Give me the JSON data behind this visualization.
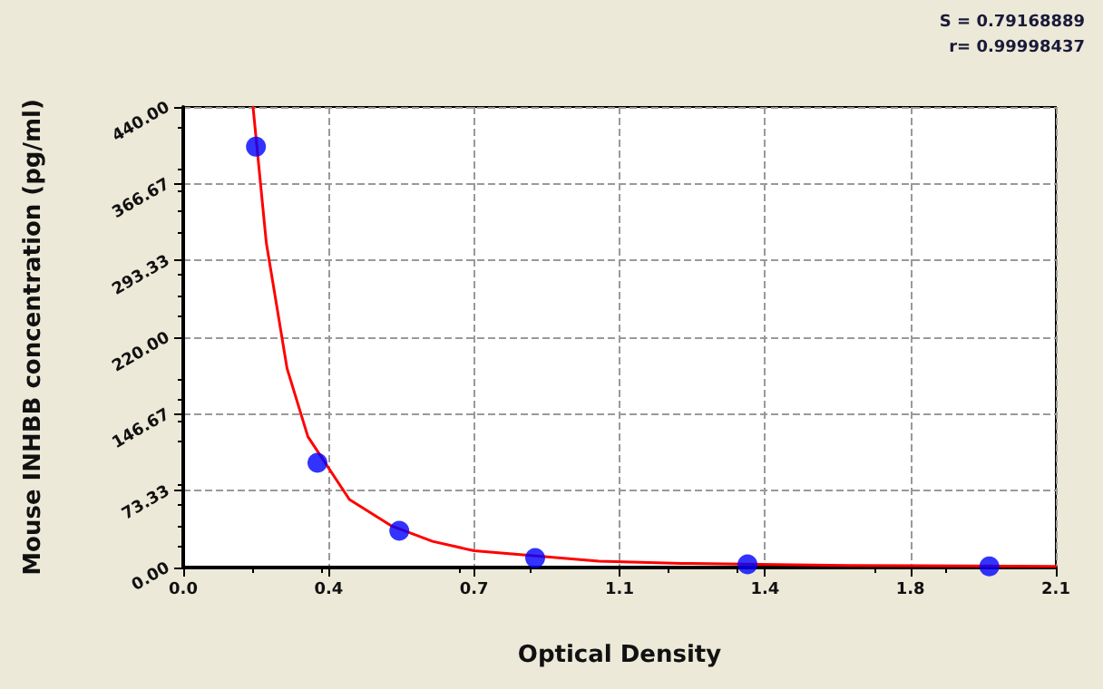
{
  "chart_data": {
    "type": "scatter",
    "xlabel": "Optical Density",
    "ylabel": "Mouse INHBB concentration (pg/ml)",
    "annotations": [
      "S = 0.79168889",
      "r= 0.99998437"
    ],
    "series": [
      {
        "color": "#0000ff",
        "marker": "circle",
        "x": [
          0.175,
          0.323,
          0.52,
          0.847,
          1.358,
          1.94
        ],
        "values": [
          402,
          100,
          35,
          9,
          3,
          1
        ]
      },
      {
        "type": "line",
        "color": "#ff0000",
        "marker": "none",
        "line_style": "solid",
        "x": [
          0.168,
          0.2,
          0.25,
          0.3,
          0.4,
          0.5,
          0.6,
          0.7,
          1.0,
          1.2,
          1.6,
          2.1
        ],
        "values": [
          440,
          310,
          190,
          125,
          65,
          40,
          25,
          16,
          6,
          4,
          2,
          1
        ]
      }
    ],
    "xlim": [
      0,
      2.1
    ],
    "xticks": [
      {
        "value": 0,
        "label": "0.0"
      },
      {
        "value": 0.35,
        "label": "0.4"
      },
      {
        "value": 0.7,
        "label": "0.7"
      },
      {
        "value": 1.05,
        "label": "1.1"
      },
      {
        "value": 1.4,
        "label": "1.4"
      },
      {
        "value": 1.75,
        "label": "1.8"
      },
      {
        "value": 2.1,
        "label": "2.1"
      }
    ],
    "ylim": [
      0,
      440
    ],
    "yticks": [
      {
        "value": 0,
        "label": "0.00"
      },
      {
        "value": 73.33,
        "label": "73.33"
      },
      {
        "value": 146.67,
        "label": "146.67"
      },
      {
        "value": 220,
        "label": "220.00"
      },
      {
        "value": 293.33,
        "label": "293.33"
      },
      {
        "value": 366.67,
        "label": "366.67"
      },
      {
        "value": 440,
        "label": "440.00"
      }
    ],
    "grid": true
  }
}
